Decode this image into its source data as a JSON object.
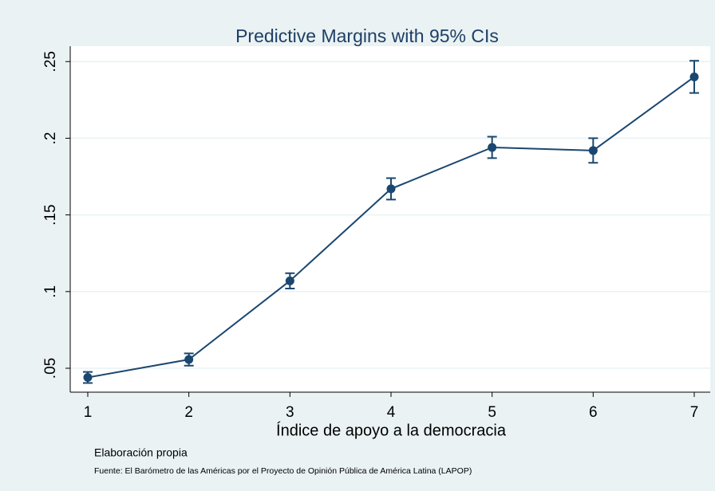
{
  "chart_data": {
    "type": "line",
    "title": "Predictive Margins with 95% CIs",
    "x_label": "Índice de apoyo a la democracia",
    "notes": [
      "Elaboración propia",
      "Fuente: El Barómetro de las Américas por el Proyecto de Opinión Pública de América Latina (LAPOP)"
    ],
    "x": [
      1,
      2,
      3,
      4,
      5,
      6,
      7
    ],
    "series": [
      {
        "color": "#1a476f",
        "values": [
          0.044,
          0.0557,
          0.107,
          0.167,
          0.194,
          0.192,
          0.24
        ],
        "errors": [
          0.0036,
          0.004,
          0.005,
          0.007,
          0.007,
          0.008,
          0.0105
        ]
      }
    ],
    "xlim": [
      1,
      7
    ],
    "xticks": [
      1,
      2,
      3,
      4,
      5,
      6,
      7
    ],
    "ylim": [
      0.0344,
      0.26
    ],
    "yticks": [
      {
        "value": 0.05,
        "label": ".05"
      },
      {
        "value": 0.1,
        "label": ".1"
      },
      {
        "value": 0.15,
        "label": ".15"
      },
      {
        "value": 0.2,
        "label": ".2"
      },
      {
        "value": 0.25,
        "label": ".25"
      }
    ],
    "grid": true
  }
}
